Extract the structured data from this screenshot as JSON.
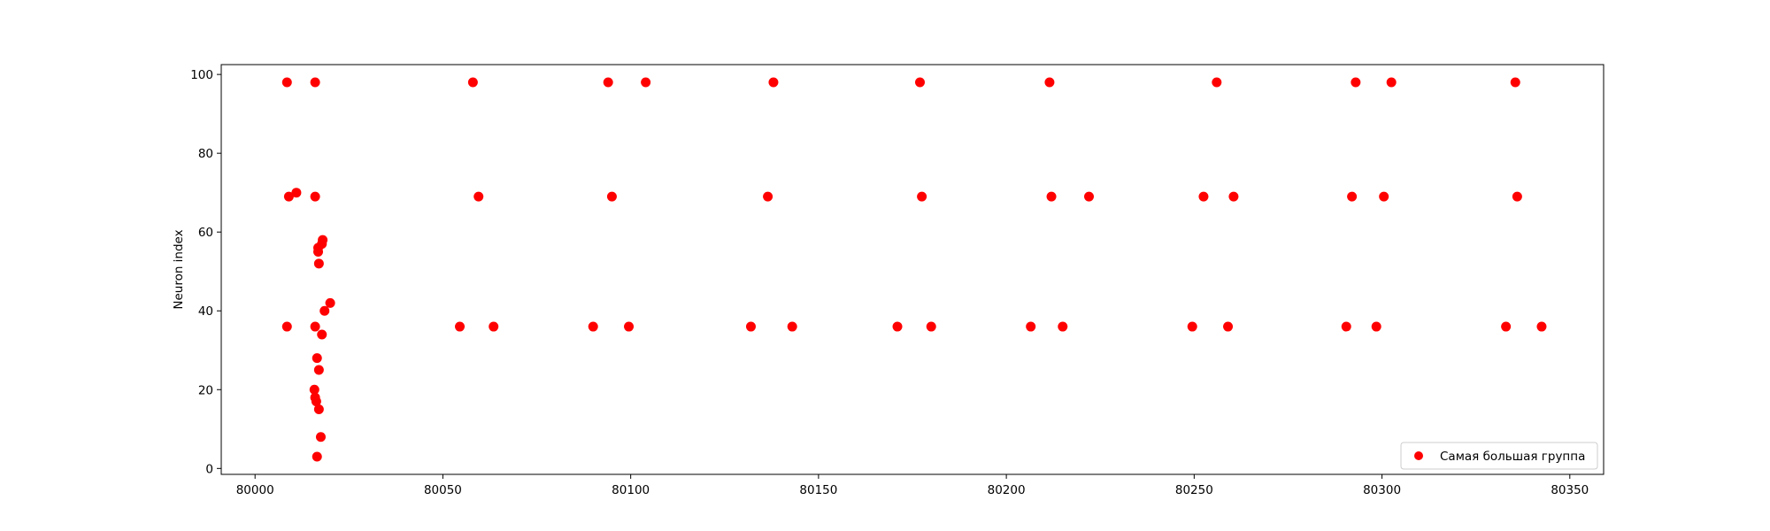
{
  "chart_data": {
    "type": "scatter",
    "title": "",
    "xlabel": "",
    "ylabel": "Neuron index",
    "xlim": [
      79991,
      80359
    ],
    "ylim": [
      -1.5,
      102.5
    ],
    "xticks": [
      80000,
      80050,
      80100,
      80150,
      80200,
      80250,
      80300,
      80350
    ],
    "yticks": [
      0,
      20,
      40,
      60,
      80,
      100
    ],
    "grid": false,
    "legend_position": "lower-right",
    "series": [
      {
        "name": "Самая большая группа",
        "color": "#ff0000",
        "points": [
          {
            "x": 80008.5,
            "y": 98
          },
          {
            "x": 80016.0,
            "y": 98
          },
          {
            "x": 80058.0,
            "y": 98
          },
          {
            "x": 80094.0,
            "y": 98
          },
          {
            "x": 80104.0,
            "y": 98
          },
          {
            "x": 80138.0,
            "y": 98
          },
          {
            "x": 80177.0,
            "y": 98
          },
          {
            "x": 80211.5,
            "y": 98
          },
          {
            "x": 80256.0,
            "y": 98
          },
          {
            "x": 80293.0,
            "y": 98
          },
          {
            "x": 80302.5,
            "y": 98
          },
          {
            "x": 80335.5,
            "y": 98
          },
          {
            "x": 80009.0,
            "y": 69
          },
          {
            "x": 80011.0,
            "y": 70
          },
          {
            "x": 80016.0,
            "y": 69
          },
          {
            "x": 80059.5,
            "y": 69
          },
          {
            "x": 80095.0,
            "y": 69
          },
          {
            "x": 80136.5,
            "y": 69
          },
          {
            "x": 80177.5,
            "y": 69
          },
          {
            "x": 80212.0,
            "y": 69
          },
          {
            "x": 80222.0,
            "y": 69
          },
          {
            "x": 80252.5,
            "y": 69
          },
          {
            "x": 80260.5,
            "y": 69
          },
          {
            "x": 80292.0,
            "y": 69
          },
          {
            "x": 80300.5,
            "y": 69
          },
          {
            "x": 80336.0,
            "y": 69
          },
          {
            "x": 80008.5,
            "y": 36
          },
          {
            "x": 80016.0,
            "y": 36
          },
          {
            "x": 80054.5,
            "y": 36
          },
          {
            "x": 80063.5,
            "y": 36
          },
          {
            "x": 80090.0,
            "y": 36
          },
          {
            "x": 80099.5,
            "y": 36
          },
          {
            "x": 80132.0,
            "y": 36
          },
          {
            "x": 80143.0,
            "y": 36
          },
          {
            "x": 80171.0,
            "y": 36
          },
          {
            "x": 80180.0,
            "y": 36
          },
          {
            "x": 80206.5,
            "y": 36
          },
          {
            "x": 80215.0,
            "y": 36
          },
          {
            "x": 80249.5,
            "y": 36
          },
          {
            "x": 80259.0,
            "y": 36
          },
          {
            "x": 80290.5,
            "y": 36
          },
          {
            "x": 80298.5,
            "y": 36
          },
          {
            "x": 80333.0,
            "y": 36
          },
          {
            "x": 80342.5,
            "y": 36
          },
          {
            "x": 80018.0,
            "y": 58
          },
          {
            "x": 80017.8,
            "y": 57
          },
          {
            "x": 80016.8,
            "y": 56
          },
          {
            "x": 80016.8,
            "y": 55
          },
          {
            "x": 80017.0,
            "y": 52
          },
          {
            "x": 80020.0,
            "y": 42
          },
          {
            "x": 80018.5,
            "y": 40
          },
          {
            "x": 80017.8,
            "y": 34
          },
          {
            "x": 80016.5,
            "y": 28
          },
          {
            "x": 80017.0,
            "y": 25
          },
          {
            "x": 80015.8,
            "y": 20
          },
          {
            "x": 80016.0,
            "y": 18
          },
          {
            "x": 80016.3,
            "y": 17
          },
          {
            "x": 80017.0,
            "y": 15
          },
          {
            "x": 80017.5,
            "y": 8
          },
          {
            "x": 80016.5,
            "y": 3
          }
        ]
      }
    ]
  }
}
